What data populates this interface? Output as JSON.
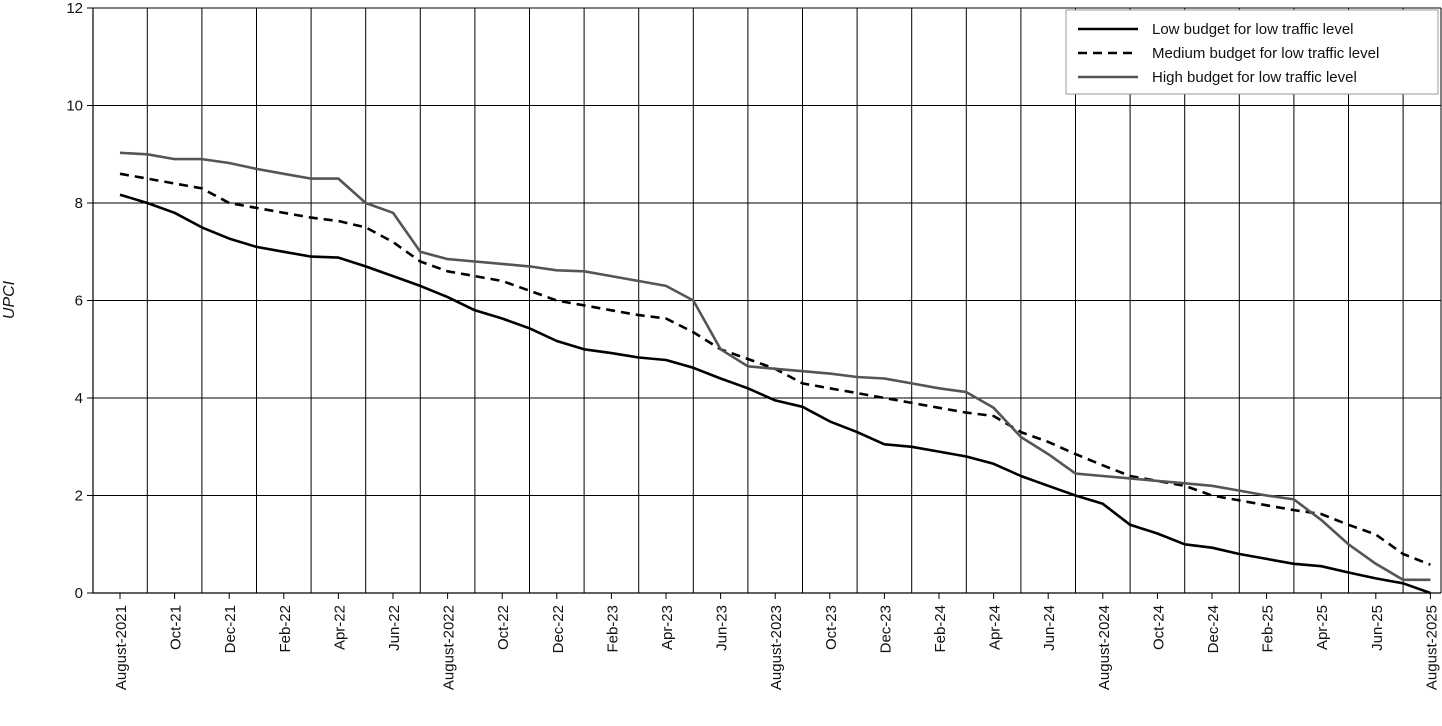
{
  "chart_data": {
    "type": "line",
    "title": "",
    "xlabel": "",
    "ylabel": "UPCI",
    "ylim": [
      0,
      12
    ],
    "yticks": [
      0,
      2,
      4,
      6,
      8,
      10,
      12
    ],
    "grid": true,
    "legend_position": "top-right",
    "x_tick_labels": [
      "August-2021",
      "Oct-21",
      "Dec-21",
      "Feb-22",
      "Apr-22",
      "Jun-22",
      "August-2022",
      "Oct-22",
      "Dec-22",
      "Feb-23",
      "Apr-23",
      "Jun-23",
      "August-2023",
      "Oct-23",
      "Dec-23",
      "Feb-24",
      "Apr-24",
      "Jun-24",
      "August-2024",
      "Oct-24",
      "Dec-24",
      "Feb-25",
      "Apr-25",
      "Jun-25",
      "August-2025"
    ],
    "series": [
      {
        "name": "Low budget for low traffic level",
        "color": "#000000",
        "dash": "solid",
        "x": [
          0,
          0.5,
          1,
          1.5,
          2,
          2.5,
          3,
          3.5,
          4,
          4.5,
          5,
          5.5,
          6,
          6.5,
          7,
          7.5,
          8,
          8.5,
          9,
          9.5,
          10,
          10.5,
          11,
          11.5,
          12,
          12.5,
          13,
          13.5,
          14,
          14.5,
          15,
          15.5,
          16,
          16.5,
          17,
          17.5,
          18,
          18.5,
          19,
          19.5,
          20,
          20.5,
          21,
          21.5,
          22,
          22.5,
          23,
          23.5,
          24
        ],
        "values": [
          8.17,
          8.0,
          7.8,
          7.5,
          7.27,
          7.1,
          7.0,
          6.9,
          6.88,
          6.7,
          6.5,
          6.3,
          6.07,
          5.8,
          5.63,
          5.43,
          5.17,
          5.0,
          4.92,
          4.83,
          4.78,
          4.62,
          4.4,
          4.2,
          3.95,
          3.82,
          3.52,
          3.3,
          3.05,
          3.0,
          2.9,
          2.8,
          2.65,
          2.4,
          2.2,
          2.0,
          1.83,
          1.4,
          1.22,
          1.0,
          0.93,
          0.8,
          0.7,
          0.6,
          0.55,
          0.42,
          0.3,
          0.2,
          0.0
        ]
      },
      {
        "name": "Medium budget for low traffic level",
        "color": "#000000",
        "dash": "dashed",
        "x": [
          0,
          0.5,
          1,
          1.5,
          2,
          2.5,
          3,
          3.5,
          4,
          4.5,
          5,
          5.5,
          6,
          6.5,
          7,
          7.5,
          8,
          8.5,
          9,
          9.5,
          10,
          10.5,
          11,
          11.5,
          12,
          12.5,
          13,
          13.5,
          14,
          14.5,
          15,
          15.5,
          16,
          16.5,
          17,
          17.5,
          18,
          18.5,
          19,
          19.5,
          20,
          20.5,
          21,
          21.5,
          22,
          22.5,
          23,
          23.5,
          24
        ],
        "values": [
          8.6,
          8.5,
          8.4,
          8.3,
          8.0,
          7.9,
          7.8,
          7.7,
          7.63,
          7.5,
          7.2,
          6.8,
          6.6,
          6.5,
          6.4,
          6.2,
          6.0,
          5.9,
          5.8,
          5.7,
          5.63,
          5.35,
          5.0,
          4.8,
          4.6,
          4.3,
          4.2,
          4.1,
          4.0,
          3.9,
          3.8,
          3.7,
          3.63,
          3.3,
          3.1,
          2.85,
          2.62,
          2.4,
          2.3,
          2.2,
          2.0,
          1.9,
          1.8,
          1.7,
          1.62,
          1.4,
          1.2,
          0.8,
          0.58
        ]
      },
      {
        "name": "High budget for low traffic level",
        "color": "#555555",
        "dash": "solid",
        "x": [
          0,
          0.5,
          1,
          1.5,
          2,
          2.5,
          3,
          3.5,
          4,
          4.5,
          5,
          5.5,
          6,
          6.5,
          7,
          7.5,
          8,
          8.5,
          9,
          9.5,
          10,
          10.5,
          11,
          11.5,
          12,
          12.5,
          13,
          13.5,
          14,
          14.5,
          15,
          15.5,
          16,
          16.5,
          17,
          17.5,
          18,
          18.5,
          19,
          19.5,
          20,
          20.5,
          21,
          21.5,
          22,
          22.5,
          23,
          23.5,
          24
        ],
        "values": [
          9.03,
          9.0,
          8.9,
          8.9,
          8.82,
          8.7,
          8.6,
          8.5,
          8.5,
          8.0,
          7.8,
          7.0,
          6.85,
          6.8,
          6.75,
          6.7,
          6.62,
          6.6,
          6.5,
          6.4,
          6.3,
          6.0,
          5.0,
          4.65,
          4.6,
          4.55,
          4.5,
          4.43,
          4.4,
          4.3,
          4.2,
          4.12,
          3.8,
          3.2,
          2.85,
          2.45,
          2.4,
          2.35,
          2.3,
          2.25,
          2.2,
          2.1,
          2.0,
          1.92,
          1.5,
          1.0,
          0.6,
          0.27,
          0.27
        ]
      }
    ]
  }
}
